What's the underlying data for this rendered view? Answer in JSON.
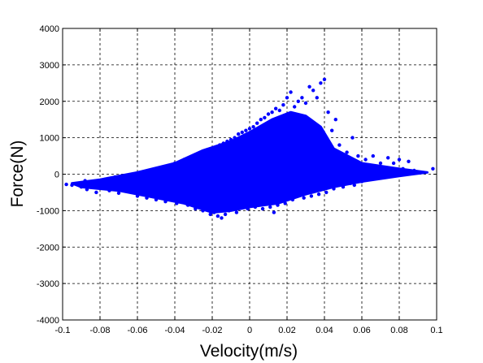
{
  "chart_data": {
    "type": "scatter",
    "title": "",
    "xlabel": "Velocity(m/s)",
    "ylabel": "Force(N)",
    "xlim": [
      -0.1,
      0.1
    ],
    "ylim": [
      -4000,
      4000
    ],
    "xticks": [
      -0.1,
      -0.08,
      -0.06,
      -0.04,
      -0.02,
      0,
      0.02,
      0.04,
      0.06,
      0.08,
      0.1
    ],
    "xtick_labels": [
      "-0.1",
      "-0.08",
      "-0.06",
      "-0.04",
      "-0.02",
      "0",
      "0.02",
      "0.04",
      "0.06",
      "0.08",
      "0.1"
    ],
    "yticks": [
      -4000,
      -3000,
      -2000,
      -1000,
      0,
      1000,
      2000,
      3000,
      4000
    ],
    "ytick_labels": [
      "-4000",
      "-3000",
      "-2000",
      "-1000",
      "0",
      "1000",
      "2000",
      "3000",
      "4000"
    ],
    "grid": true,
    "marker_color": "#0000ff",
    "series": [
      {
        "points": [
          [
            -0.098,
            -280
          ],
          [
            -0.095,
            -300
          ],
          [
            -0.092,
            -260
          ],
          [
            -0.09,
            -350
          ],
          [
            -0.088,
            -180
          ],
          [
            -0.087,
            -420
          ],
          [
            -0.085,
            -300
          ],
          [
            -0.083,
            -250
          ],
          [
            -0.082,
            -500
          ],
          [
            -0.08,
            -200
          ],
          [
            -0.078,
            -380
          ],
          [
            -0.076,
            -150
          ],
          [
            -0.075,
            -450
          ],
          [
            -0.073,
            -300
          ],
          [
            -0.072,
            -80
          ],
          [
            -0.07,
            -520
          ],
          [
            -0.068,
            -250
          ],
          [
            -0.066,
            -120
          ],
          [
            -0.065,
            -400
          ],
          [
            -0.063,
            -50
          ],
          [
            -0.062,
            -300
          ],
          [
            -0.06,
            -600
          ],
          [
            -0.058,
            0
          ],
          [
            -0.057,
            -200
          ],
          [
            -0.055,
            -650
          ],
          [
            -0.054,
            50
          ],
          [
            -0.052,
            -350
          ],
          [
            -0.05,
            -700
          ],
          [
            -0.049,
            100
          ],
          [
            -0.047,
            -450
          ],
          [
            -0.046,
            150
          ],
          [
            -0.045,
            -750
          ],
          [
            -0.043,
            200
          ],
          [
            -0.042,
            -600
          ],
          [
            -0.04,
            300
          ],
          [
            -0.039,
            -800
          ],
          [
            -0.038,
            250
          ],
          [
            -0.036,
            -500
          ],
          [
            -0.035,
            400
          ],
          [
            -0.033,
            -850
          ],
          [
            -0.032,
            350
          ],
          [
            -0.031,
            -700
          ],
          [
            -0.03,
            500
          ],
          [
            -0.029,
            -950
          ],
          [
            -0.028,
            450
          ],
          [
            -0.027,
            -800
          ],
          [
            -0.026,
            550
          ],
          [
            -0.025,
            -1000
          ],
          [
            -0.024,
            600
          ],
          [
            -0.023,
            -900
          ],
          [
            -0.022,
            650
          ],
          [
            -0.021,
            -1100
          ],
          [
            -0.02,
            700
          ],
          [
            -0.019,
            -1050
          ],
          [
            -0.018,
            750
          ],
          [
            -0.017,
            -1150
          ],
          [
            -0.016,
            800
          ],
          [
            -0.015,
            -1200
          ],
          [
            -0.014,
            850
          ],
          [
            -0.013,
            -1100
          ],
          [
            -0.012,
            900
          ],
          [
            -0.011,
            -1000
          ],
          [
            -0.01,
            950
          ],
          [
            -0.009,
            -950
          ],
          [
            -0.008,
            1000
          ],
          [
            -0.007,
            -1050
          ],
          [
            -0.006,
            1100
          ],
          [
            -0.005,
            -900
          ],
          [
            -0.004,
            1150
          ],
          [
            -0.003,
            -850
          ],
          [
            -0.002,
            1200
          ],
          [
            -0.001,
            -950
          ],
          [
            0.0,
            1250
          ],
          [
            0.001,
            -800
          ],
          [
            0.002,
            1300
          ],
          [
            0.003,
            -900
          ],
          [
            0.004,
            1400
          ],
          [
            0.005,
            -850
          ],
          [
            0.006,
            1500
          ],
          [
            0.007,
            -950
          ],
          [
            0.008,
            1550
          ],
          [
            0.009,
            -800
          ],
          [
            0.01,
            1650
          ],
          [
            0.011,
            -900
          ],
          [
            0.012,
            1700
          ],
          [
            0.013,
            -1050
          ],
          [
            0.014,
            1800
          ],
          [
            0.015,
            -850
          ],
          [
            0.016,
            1750
          ],
          [
            0.017,
            -700
          ],
          [
            0.018,
            1900
          ],
          [
            0.019,
            -800
          ],
          [
            0.02,
            2100
          ],
          [
            0.021,
            -650
          ],
          [
            0.022,
            2250
          ],
          [
            0.023,
            -700
          ],
          [
            0.024,
            1850
          ],
          [
            0.025,
            -600
          ],
          [
            0.026,
            2000
          ],
          [
            0.027,
            -550
          ],
          [
            0.028,
            2100
          ],
          [
            0.029,
            -650
          ],
          [
            0.03,
            1950
          ],
          [
            0.031,
            -500
          ],
          [
            0.032,
            2400
          ],
          [
            0.033,
            -600
          ],
          [
            0.034,
            2300
          ],
          [
            0.035,
            -450
          ],
          [
            0.036,
            2100
          ],
          [
            0.037,
            -550
          ],
          [
            0.038,
            2500
          ],
          [
            0.039,
            -400
          ],
          [
            0.04,
            2600
          ],
          [
            0.041,
            -500
          ],
          [
            0.042,
            1700
          ],
          [
            0.043,
            -350
          ],
          [
            0.044,
            1200
          ],
          [
            0.045,
            -400
          ],
          [
            0.046,
            1500
          ],
          [
            0.047,
            -300
          ],
          [
            0.048,
            800
          ],
          [
            0.05,
            -350
          ],
          [
            0.052,
            600
          ],
          [
            0.054,
            -250
          ],
          [
            0.055,
            1000
          ],
          [
            0.056,
            -300
          ],
          [
            0.058,
            500
          ],
          [
            0.06,
            -200
          ],
          [
            0.062,
            400
          ],
          [
            0.064,
            100
          ],
          [
            0.066,
            500
          ],
          [
            0.068,
            -100
          ],
          [
            0.07,
            300
          ],
          [
            0.072,
            0
          ],
          [
            0.074,
            450
          ],
          [
            0.075,
            150
          ],
          [
            0.077,
            300
          ],
          [
            0.079,
            50
          ],
          [
            0.08,
            400
          ],
          [
            0.082,
            150
          ],
          [
            0.085,
            350
          ],
          [
            0.088,
            100
          ],
          [
            0.098,
            150
          ]
        ]
      }
    ]
  }
}
